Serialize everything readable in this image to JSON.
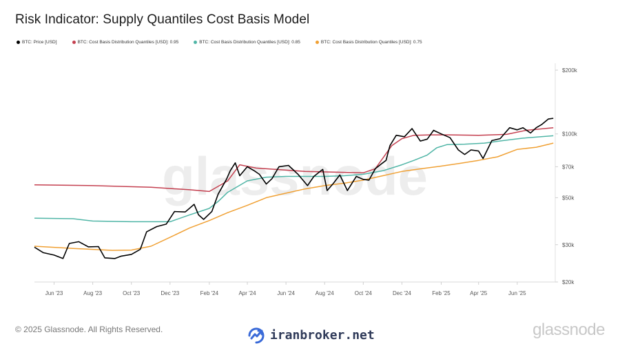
{
  "page": {
    "title": "Risk Indicator: Supply Quantiles Cost Basis Model",
    "copyright": "© 2025 Glassnode. All Rights Reserved.",
    "brand_name": "iranbroker.net",
    "logo_text": "glassnode",
    "watermark_text": "glassnode"
  },
  "chart_data": {
    "type": "line",
    "title": "Risk Indicator: Supply Quantiles Cost Basis Model",
    "y_scale": "log",
    "ylim": [
      20000,
      200000
    ],
    "y_ticks": [
      {
        "value": 200000,
        "label": "$200k"
      },
      {
        "value": 100000,
        "label": "$100k"
      },
      {
        "value": 70000,
        "label": "$70k"
      },
      {
        "value": 50000,
        "label": "$50k"
      },
      {
        "value": 30000,
        "label": "$30k"
      },
      {
        "value": 20000,
        "label": "$20k"
      }
    ],
    "xlim": [
      "2023-05-01",
      "2025-07-31"
    ],
    "x_ticks": [
      {
        "value": "2023-06-01",
        "label": "Jun '23"
      },
      {
        "value": "2023-08-01",
        "label": "Aug '23"
      },
      {
        "value": "2023-10-01",
        "label": "Oct '23"
      },
      {
        "value": "2023-12-01",
        "label": "Dec '23"
      },
      {
        "value": "2024-02-01",
        "label": "Feb '24"
      },
      {
        "value": "2024-04-01",
        "label": "Apr '24"
      },
      {
        "value": "2024-06-01",
        "label": "Jun '24"
      },
      {
        "value": "2024-08-01",
        "label": "Aug '24"
      },
      {
        "value": "2024-10-01",
        "label": "Oct '24"
      },
      {
        "value": "2024-12-01",
        "label": "Dec '24"
      },
      {
        "value": "2025-02-01",
        "label": "Feb '25"
      },
      {
        "value": "2025-04-01",
        "label": "Apr '25"
      },
      {
        "value": "2025-06-01",
        "label": "Jun '25"
      }
    ],
    "legend_position": "top-left",
    "grid": false,
    "series": [
      {
        "name": "BTC: Price [USD]",
        "color": "#000000",
        "x": [
          "2023-05-01",
          "2023-05-15",
          "2023-06-01",
          "2023-06-15",
          "2023-06-25",
          "2023-07-10",
          "2023-07-25",
          "2023-08-10",
          "2023-08-20",
          "2023-09-05",
          "2023-09-15",
          "2023-10-01",
          "2023-10-15",
          "2023-10-25",
          "2023-11-10",
          "2023-11-25",
          "2023-12-08",
          "2023-12-25",
          "2024-01-08",
          "2024-01-15",
          "2024-01-23",
          "2024-02-05",
          "2024-02-15",
          "2024-02-28",
          "2024-03-05",
          "2024-03-13",
          "2024-03-20",
          "2024-04-01",
          "2024-04-12",
          "2024-04-20",
          "2024-05-01",
          "2024-05-10",
          "2024-05-21",
          "2024-06-05",
          "2024-06-20",
          "2024-07-05",
          "2024-07-15",
          "2024-07-29",
          "2024-08-05",
          "2024-08-15",
          "2024-08-25",
          "2024-09-06",
          "2024-09-20",
          "2024-10-01",
          "2024-10-10",
          "2024-10-20",
          "2024-10-29",
          "2024-11-06",
          "2024-11-12",
          "2024-11-22",
          "2024-12-05",
          "2024-12-17",
          "2024-12-30",
          "2025-01-10",
          "2025-01-20",
          "2025-02-01",
          "2025-02-15",
          "2025-02-28",
          "2025-03-10",
          "2025-03-20",
          "2025-04-01",
          "2025-04-08",
          "2025-04-22",
          "2025-05-05",
          "2025-05-20",
          "2025-06-01",
          "2025-06-10",
          "2025-06-22",
          "2025-07-01",
          "2025-07-10",
          "2025-07-20",
          "2025-07-28"
        ],
        "values": [
          29200,
          27500,
          26800,
          25800,
          30400,
          31000,
          29300,
          29400,
          26000,
          25800,
          26500,
          27000,
          28500,
          34500,
          36500,
          37500,
          43000,
          42800,
          46500,
          41500,
          39500,
          43000,
          52000,
          61000,
          67000,
          73000,
          63500,
          70000,
          67000,
          64500,
          58000,
          61500,
          70000,
          71000,
          64500,
          57000,
          63000,
          68000,
          54000,
          58500,
          64000,
          54000,
          63000,
          61000,
          60500,
          68500,
          72000,
          75000,
          88000,
          98500,
          97000,
          106000,
          92500,
          94500,
          104000,
          100000,
          96000,
          84000,
          80000,
          84000,
          83000,
          76500,
          93000,
          95000,
          107000,
          104500,
          107000,
          101000,
          107000,
          111000,
          117500,
          118500
        ]
      },
      {
        "name": "BTC: Cost Basis Distribution Quantiles [USD]: 0.95",
        "color": "#c43f4f",
        "x": [
          "2023-05-01",
          "2023-08-01",
          "2023-11-01",
          "2024-01-01",
          "2024-02-01",
          "2024-03-01",
          "2024-03-20",
          "2024-04-15",
          "2024-05-15",
          "2024-07-01",
          "2024-08-15",
          "2024-10-01",
          "2024-10-20",
          "2024-11-15",
          "2024-12-01",
          "2024-12-20",
          "2025-01-15",
          "2025-02-15",
          "2025-04-01",
          "2025-05-15",
          "2025-06-15",
          "2025-07-28"
        ],
        "values": [
          57500,
          57000,
          56000,
          54500,
          53500,
          60000,
          71500,
          69000,
          68000,
          66500,
          66000,
          65500,
          68500,
          88000,
          95000,
          98500,
          99000,
          99000,
          98500,
          99500,
          104000,
          107000
        ]
      },
      {
        "name": "BTC: Cost Basis Distribution Quantiles [USD]: 0.85",
        "color": "#4fb5a6",
        "x": [
          "2023-05-01",
          "2023-07-01",
          "2023-08-01",
          "2023-10-01",
          "2023-12-01",
          "2024-01-01",
          "2024-02-01",
          "2024-02-15",
          "2024-03-01",
          "2024-04-01",
          "2024-05-01",
          "2024-06-01",
          "2024-07-01",
          "2024-08-01",
          "2024-09-01",
          "2024-10-01",
          "2024-11-01",
          "2024-12-01",
          "2024-12-20",
          "2025-01-10",
          "2025-01-25",
          "2025-02-10",
          "2025-03-10",
          "2025-04-10",
          "2025-05-10",
          "2025-06-10",
          "2025-07-28"
        ],
        "values": [
          40000,
          39800,
          38800,
          38500,
          38500,
          41500,
          44500,
          48000,
          53000,
          60000,
          62500,
          63000,
          63000,
          63000,
          63500,
          64500,
          67000,
          71500,
          75000,
          79500,
          86000,
          89000,
          89500,
          90500,
          93000,
          95500,
          98000
        ]
      },
      {
        "name": "BTC: Cost Basis Distribution Quantiles [USD]: 0.75",
        "color": "#f0a033",
        "x": [
          "2023-05-01",
          "2023-07-01",
          "2023-08-01",
          "2023-09-01",
          "2023-10-01",
          "2023-11-01",
          "2023-12-01",
          "2024-01-01",
          "2024-02-01",
          "2024-03-01",
          "2024-04-01",
          "2024-05-01",
          "2024-06-01",
          "2024-07-01",
          "2024-08-01",
          "2024-09-01",
          "2024-10-01",
          "2024-11-01",
          "2024-12-01",
          "2025-01-01",
          "2025-02-01",
          "2025-03-01",
          "2025-04-01",
          "2025-05-01",
          "2025-06-01",
          "2025-07-01",
          "2025-07-28"
        ],
        "values": [
          29500,
          28800,
          28500,
          28200,
          28300,
          29500,
          32500,
          36000,
          39000,
          42500,
          46000,
          50000,
          52500,
          55000,
          57000,
          58500,
          60500,
          63500,
          66500,
          68500,
          70500,
          72500,
          75000,
          78000,
          84500,
          86500,
          90500
        ]
      }
    ]
  }
}
